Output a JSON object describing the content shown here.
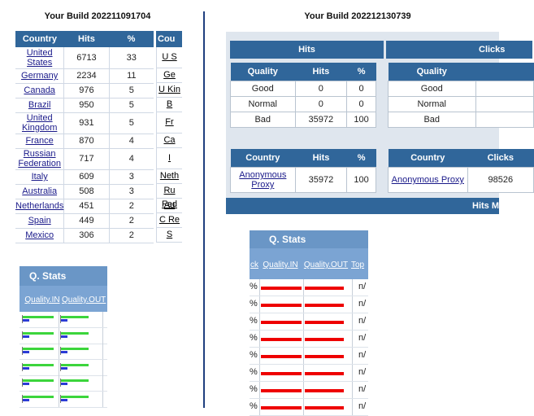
{
  "left": {
    "title": "Your Build 202211091704",
    "table": {
      "headers": [
        "Country",
        "Hits",
        "%"
      ],
      "rows": [
        {
          "country": "United States",
          "hits": "6713",
          "pct": "33"
        },
        {
          "country": "Germany",
          "hits": "2234",
          "pct": "11"
        },
        {
          "country": "Canada",
          "hits": "976",
          "pct": "5"
        },
        {
          "country": "Brazil",
          "hits": "950",
          "pct": "5"
        },
        {
          "country": "United Kingdom",
          "hits": "931",
          "pct": "5"
        },
        {
          "country": "France",
          "hits": "870",
          "pct": "4"
        },
        {
          "country": "Russian Federation",
          "hits": "717",
          "pct": "4"
        },
        {
          "country": "Italy",
          "hits": "609",
          "pct": "3"
        },
        {
          "country": "Australia",
          "hits": "508",
          "pct": "3"
        },
        {
          "country": "Netherlands",
          "hits": "451",
          "pct": "2"
        },
        {
          "country": "Spain",
          "hits": "449",
          "pct": "2"
        },
        {
          "country": "Mexico",
          "hits": "306",
          "pct": "2"
        }
      ]
    },
    "clipped_table": {
      "header": "Cou",
      "cells": [
        "U S",
        "Ge",
        "U Kin",
        "B",
        "Fr",
        "Ca",
        "I",
        "Neth",
        "Ru Fed",
        "Au",
        "C Re",
        "S"
      ]
    },
    "qstats": {
      "title": "Q. Stats",
      "col_in": "Quality.IN",
      "col_out": "Quality.OUT"
    }
  },
  "right": {
    "title": "Your Build 202212130739",
    "headers": {
      "hits": "Hits",
      "clicks": "Clicks",
      "hits_more": "Hits M"
    },
    "quality_table": {
      "headers": [
        "Quality",
        "Hits",
        "%"
      ],
      "rows": [
        {
          "quality": "Good",
          "hits": "0",
          "pct": "0"
        },
        {
          "quality": "Normal",
          "hits": "0",
          "pct": "0"
        },
        {
          "quality": "Bad",
          "hits": "35972",
          "pct": "100"
        }
      ]
    },
    "quality_table_2": {
      "headers": [
        "Quality"
      ],
      "rows": [
        "Good",
        "Normal",
        "Bad"
      ]
    },
    "country_table": {
      "headers": [
        "Country",
        "Hits",
        "%"
      ],
      "row": {
        "country": "Anonymous Proxy",
        "hits": "35972",
        "pct": "100"
      }
    },
    "country_table_2": {
      "headers": [
        "Country",
        "Clicks"
      ],
      "row": {
        "country": "Anonymous Proxy",
        "clicks": "98526"
      }
    },
    "qstats": {
      "title": "Q. Stats",
      "col_ck": "ck",
      "col_in": "Quality.IN",
      "col_out": "Quality.OUT",
      "col_top": "Top",
      "row_prefix": "%",
      "row_tail": "n/",
      "row_count": 8
    }
  },
  "colors": {
    "header_blue": "#30669a",
    "qstats_title": "#6a96c6",
    "bar_red": "#e00000",
    "bar_green": "#3cd53c",
    "bar_blue": "#2b3bd6"
  }
}
